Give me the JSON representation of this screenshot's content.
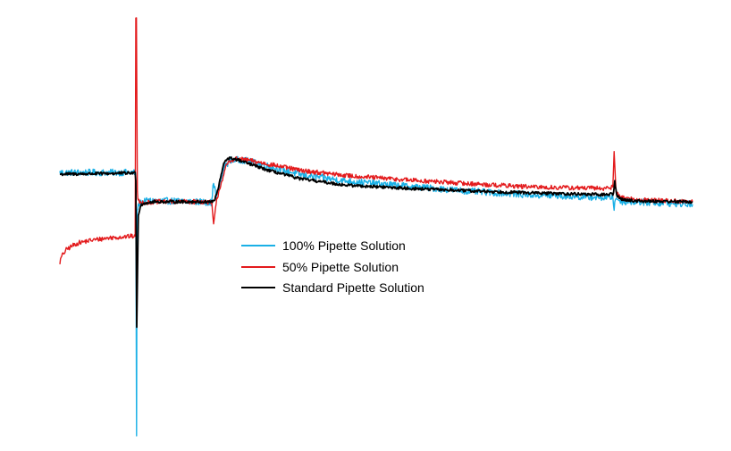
{
  "chart_data": {
    "type": "line",
    "title": "",
    "xlabel": "",
    "ylabel": "",
    "axes_visible": false,
    "grid": false,
    "legend_position": "center",
    "xlim": [
      0,
      100
    ],
    "ylim": [
      0,
      100
    ],
    "series": [
      {
        "name": "100% Pipette Solution",
        "color": "#1ab0e6",
        "noise": 0.8,
        "x": [
          0,
          11.9,
          12.0,
          12.12,
          12.2,
          12.5,
          13.0,
          14.0,
          17.0,
          22.0,
          24.0,
          24.3,
          24.7,
          25.0,
          25.5,
          26.0,
          27.0,
          29.0,
          33.0,
          38.0,
          45.0,
          55.0,
          65.0,
          75.0,
          86.0,
          87.4,
          87.6,
          87.9,
          88.3,
          89.0,
          91.0,
          100.0
        ],
        "y": [
          63.0,
          63.0,
          60.0,
          0.0,
          54.0,
          55.5,
          56.0,
          56.2,
          56.2,
          56.0,
          55.8,
          61.0,
          57.0,
          58.5,
          61.5,
          64.5,
          66.0,
          66.0,
          64.5,
          62.5,
          61.0,
          59.7,
          58.5,
          57.6,
          57.0,
          57.2,
          54.5,
          57.0,
          56.5,
          56.0,
          56.0,
          55.4
        ]
      },
      {
        "name": "50% Pipette Solution",
        "color": "#e31a1c",
        "noise": 0.55,
        "x": [
          0,
          0.3,
          1.0,
          2.0,
          3.0,
          5.0,
          8.0,
          11.9,
          12.0,
          12.1,
          12.25,
          12.4,
          12.8,
          13.5,
          15.0,
          18.0,
          23.0,
          24.0,
          24.3,
          24.8,
          25.3,
          25.8,
          26.4,
          27.5,
          29.5,
          33.0,
          38.0,
          45.0,
          55.0,
          65.0,
          75.0,
          86.0,
          87.4,
          87.6,
          87.9,
          88.3,
          89.0,
          91.0,
          100.0
        ],
        "y": [
          41.5,
          43.0,
          44.5,
          45.5,
          46.2,
          46.8,
          47.4,
          47.8,
          100.0,
          100.0,
          58.0,
          56.2,
          55.8,
          55.8,
          56.0,
          56.0,
          56.0,
          55.8,
          50.5,
          56.5,
          59.5,
          62.0,
          65.0,
          66.3,
          66.0,
          65.0,
          63.5,
          62.3,
          61.2,
          60.3,
          59.5,
          59.2,
          59.5,
          68.0,
          58.5,
          57.5,
          57.0,
          56.5,
          56.0
        ]
      },
      {
        "name": "Standard Pipette Solution",
        "color": "#000000",
        "noise": 0.35,
        "x": [
          0,
          5.0,
          11.9,
          12.0,
          12.15,
          12.4,
          12.8,
          13.5,
          15.0,
          20.0,
          24.0,
          24.5,
          25.0,
          25.5,
          26.0,
          26.5,
          27.5,
          29.5,
          33.0,
          38.0,
          45.0,
          55.0,
          65.0,
          75.0,
          86.0,
          87.5,
          87.7,
          88.0,
          88.4,
          89.0,
          91.0,
          100.0
        ],
        "y": [
          62.6,
          62.7,
          62.9,
          61.0,
          26.0,
          53.0,
          55.3,
          55.7,
          56.0,
          56.0,
          56.0,
          56.5,
          59.0,
          62.5,
          65.5,
          66.4,
          66.3,
          65.3,
          63.5,
          61.5,
          60.0,
          59.2,
          58.6,
          58.1,
          57.7,
          57.9,
          61.0,
          57.5,
          57.0,
          56.5,
          56.2,
          56.0
        ]
      }
    ]
  }
}
